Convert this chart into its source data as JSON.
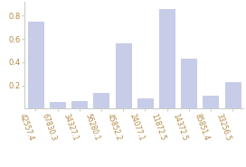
{
  "categories": [
    "42557.4",
    "67830.3",
    "34327.1",
    "56280.1",
    "45852.2",
    "24077.1",
    "11872.5",
    "14372.5",
    "85851.4",
    "33256.5"
  ],
  "values": [
    0.75,
    0.055,
    0.065,
    0.135,
    0.56,
    0.09,
    0.855,
    0.43,
    0.11,
    0.23
  ],
  "bar_color": "#c7cde8",
  "bar_edge_color": "#b0b8de",
  "ylim": [
    0,
    0.92
  ],
  "yticks": [
    0.2,
    0.4,
    0.6,
    0.8
  ],
  "xlabel_rotation": -70,
  "label_fontsize": 5.5,
  "tick_fontsize": 6.0,
  "tick_color": "#b08840",
  "background_color": "#ffffff"
}
